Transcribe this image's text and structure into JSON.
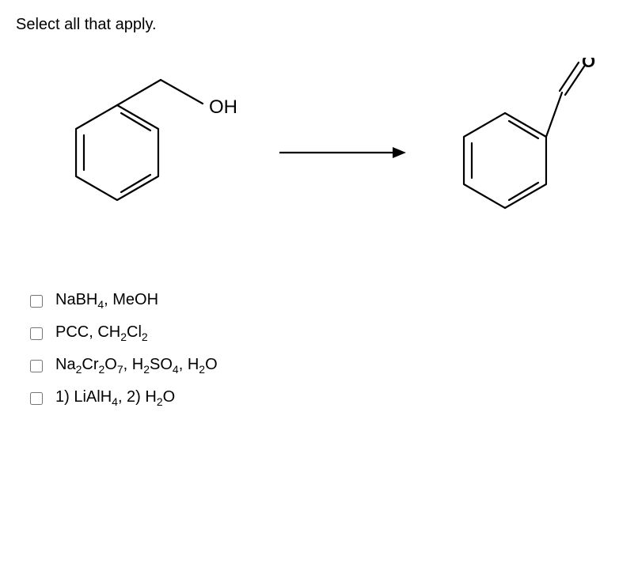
{
  "prompt": "Select all that apply.",
  "reaction": {
    "start_label": "OH",
    "label_fontsize": 20,
    "stroke_color": "#000000",
    "stroke_width": 2.2,
    "ring_inner_gap": 6,
    "arrow_length": 150
  },
  "options": [
    {
      "html": "NaBH<sub>4</sub>, MeOH",
      "checked": false
    },
    {
      "html": "PCC, CH<sub>2</sub>Cl<sub>2</sub>",
      "checked": false
    },
    {
      "html": "Na<sub>2</sub>Cr<sub>2</sub>O<sub>7</sub>, H<sub>2</sub>SO<sub>4</sub>, H<sub>2</sub>O",
      "checked": false
    },
    {
      "html": "1) LiAlH<sub>4</sub>, 2) H<sub>2</sub>O",
      "checked": false
    }
  ],
  "colors": {
    "background": "#ffffff",
    "text": "#000000"
  }
}
